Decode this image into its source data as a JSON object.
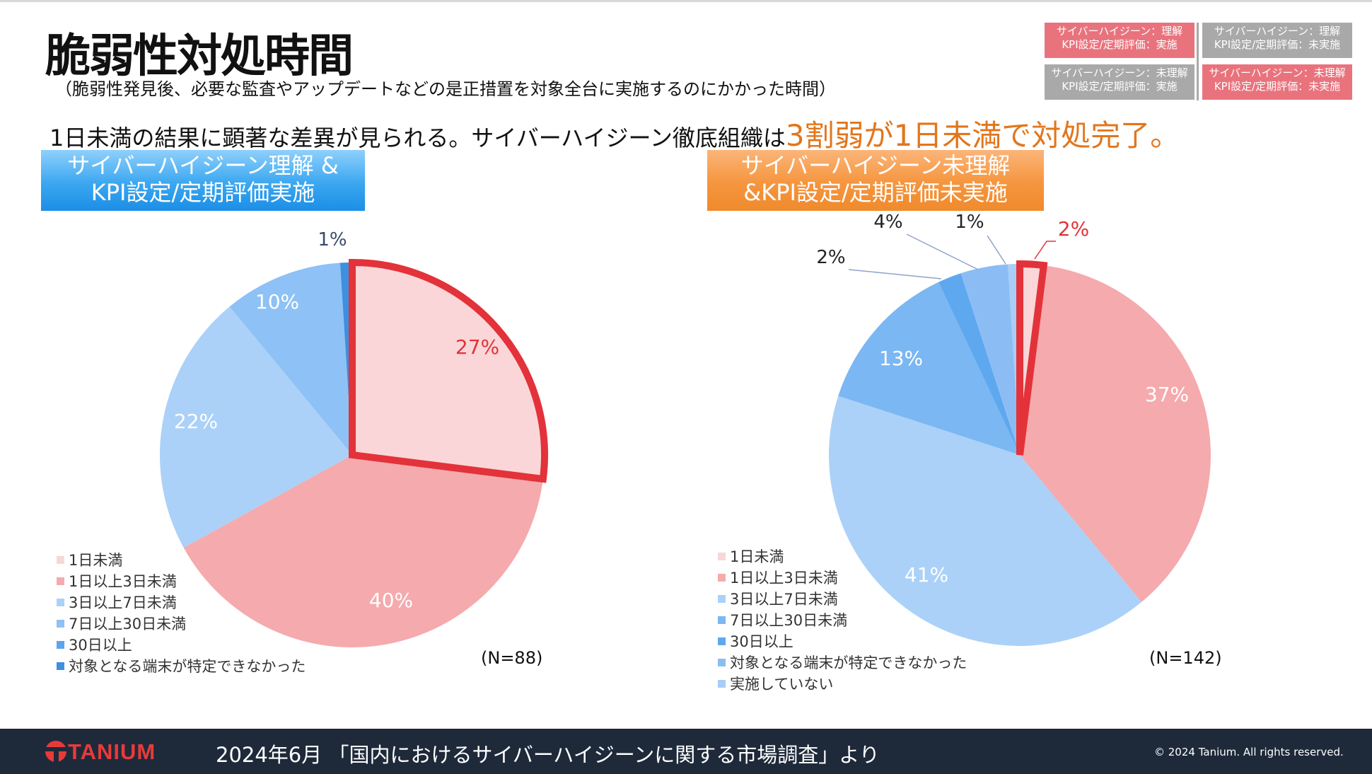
{
  "page": {
    "title": "脆弱性対処時間",
    "subtitle": "（脆弱性発見後、必要な監査やアップデートなどの是正措置を対象全台に実施するのにかかった時間）",
    "headline_main": "1日未満の結果に顕著な差異が見られる。サイバーハイジーン徹底組織は",
    "headline_highlight": "3割弱が1日未満で対処完了。"
  },
  "tags": [
    {
      "line1": "サイバーハイジーン：理解",
      "line2": "KPI設定/定期評価：実施",
      "color": "#e9737d"
    },
    {
      "line1": "サイバーハイジーン：理解",
      "line2": "KPI設定/定期評価：未実施",
      "color": "#a9a9a9"
    },
    {
      "line1": "サイバーハイジーン：未理解",
      "line2": "KPI設定/定期評価：実施",
      "color": "#a9a9a9"
    },
    {
      "line1": "サイバーハイジーン：未理解",
      "line2": "KPI設定/定期評価：未実施",
      "color": "#e9737d"
    }
  ],
  "chart_data": [
    {
      "type": "pie",
      "title": "サイバーハイジーン理解 & KPI設定/定期評価実施",
      "title_line1": "サイバーハイジーン理解 &",
      "title_line2": "KPI設定/定期評価実施",
      "n_label": "(N=88)",
      "categories": [
        "1日未満",
        "1日以上3日未満",
        "3日以上7日未満",
        "7日以上30日未満",
        "30日以上",
        "対象となる端末が特定できなかった"
      ],
      "values": [
        27,
        40,
        22,
        10,
        0,
        1
      ],
      "value_labels": [
        "27%",
        "40%",
        "22%",
        "10%",
        "",
        "1%"
      ],
      "highlight": "1日未満",
      "colors": [
        "#fad6d8",
        "#f5aaad",
        "#abd1f8",
        "#8ec1f5",
        "#5aa5ee",
        "#3d8fe0"
      ]
    },
    {
      "type": "pie",
      "title": "サイバーハイジーン未理解 &KPI設定/定期評価未実施",
      "title_line1": "サイバーハイジーン未理解",
      "title_line2": "&KPI設定/定期評価未実施",
      "n_label": "(N=142)",
      "categories": [
        "1日未満",
        "1日以上3日未満",
        "3日以上7日未満",
        "7日以上30日未満",
        "30日以上",
        "対象となる端末が特定できなかった",
        "実施していない"
      ],
      "values": [
        2,
        37,
        41,
        13,
        2,
        4,
        1
      ],
      "value_labels": [
        "2%",
        "37%",
        "41%",
        "13%",
        "2%",
        "4%",
        "1%"
      ],
      "highlight": "1日未満",
      "colors": [
        "#fad6d8",
        "#f5aaad",
        "#abd1f8",
        "#7ab7f3",
        "#5ea8ef",
        "#8bbdf4",
        "#a8cdf7"
      ]
    }
  ],
  "footer": {
    "logo": "TANIUM",
    "source": "2024年6月 「国内におけるサイバーハイジーンに関する市場調査」より",
    "copyright": "© 2024 Tanium. All rights reserved."
  },
  "colors": {
    "highlight_red": "#e3323a",
    "accent_orange": "#e2761c",
    "footer_bg": "#1e2a3a"
  }
}
